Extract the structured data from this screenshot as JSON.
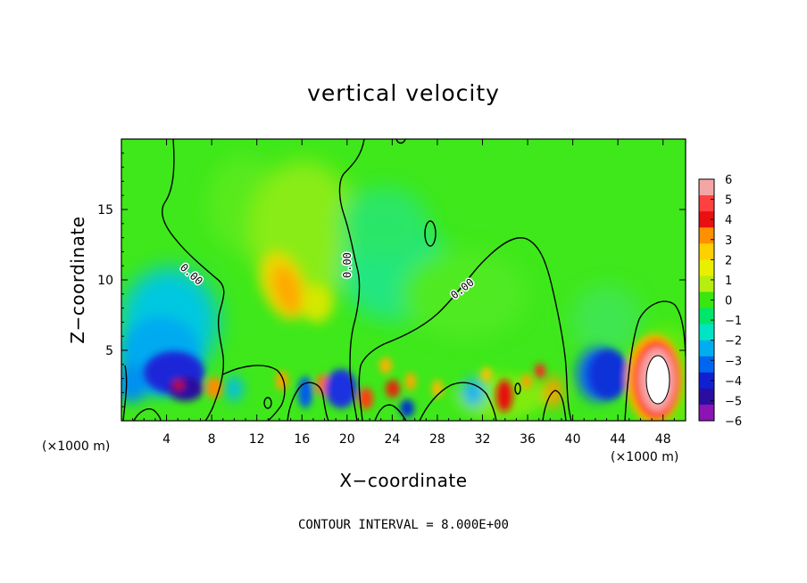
{
  "chart_data": {
    "type": "heatmap",
    "title": "vertical velocity",
    "xlabel": "X−coordinate",
    "ylabel": "Z−coordinate",
    "x_unit_label": "(×1000 m)",
    "xlim": [
      0,
      50
    ],
    "ylim": [
      0,
      20
    ],
    "x_ticks": [
      4,
      8,
      12,
      16,
      20,
      24,
      28,
      32,
      36,
      40,
      44,
      48
    ],
    "y_ticks": [
      5,
      10,
      15
    ],
    "footer": "CONTOUR INTERVAL = 8.000E+00",
    "contour_label": "0.00",
    "colorbar": {
      "ticks": [
        "6",
        "5",
        "4",
        "3",
        "2",
        "1",
        "0",
        "−1",
        "−2",
        "−3",
        "−4",
        "−5",
        "−6"
      ],
      "range": [
        -6,
        6
      ],
      "colors": [
        "#f4a6a6",
        "#ff4040",
        "#e81010",
        "#ff9000",
        "#ffd000",
        "#e8f000",
        "#b6ee10",
        "#38e610",
        "#00e66a",
        "#00e4c4",
        "#00aef0",
        "#0066f0",
        "#1020d0",
        "#2a0ea0",
        "#8a14b4"
      ]
    },
    "features": [
      {
        "x": 5.0,
        "z": 3.0,
        "w": -5.0
      },
      {
        "x": 6.0,
        "z": 2.2,
        "w": -5.5
      },
      {
        "x": 3.5,
        "z": 6.0,
        "w": -2.5
      },
      {
        "x": 2.0,
        "z": 3.0,
        "w": -3.0
      },
      {
        "x": 13.5,
        "z": 9.5,
        "w": 3.5
      },
      {
        "x": 17.5,
        "z": 8.5,
        "w": 1.5
      },
      {
        "x": 17.0,
        "z": 14.0,
        "w": 0.5
      },
      {
        "x": 23.5,
        "z": 9.0,
        "w": -1.0
      },
      {
        "x": 33.5,
        "z": 2.0,
        "w": 4.5
      },
      {
        "x": 43.5,
        "z": 3.5,
        "w": -4.0
      },
      {
        "x": 47.8,
        "z": 3.0,
        "w": 8.0
      },
      {
        "x": 19.0,
        "z": 2.0,
        "w": -4.0
      },
      {
        "x": 25.5,
        "z": 1.0,
        "w": -3.5
      },
      {
        "x": 22.0,
        "z": 1.5,
        "w": 4.0
      }
    ]
  }
}
